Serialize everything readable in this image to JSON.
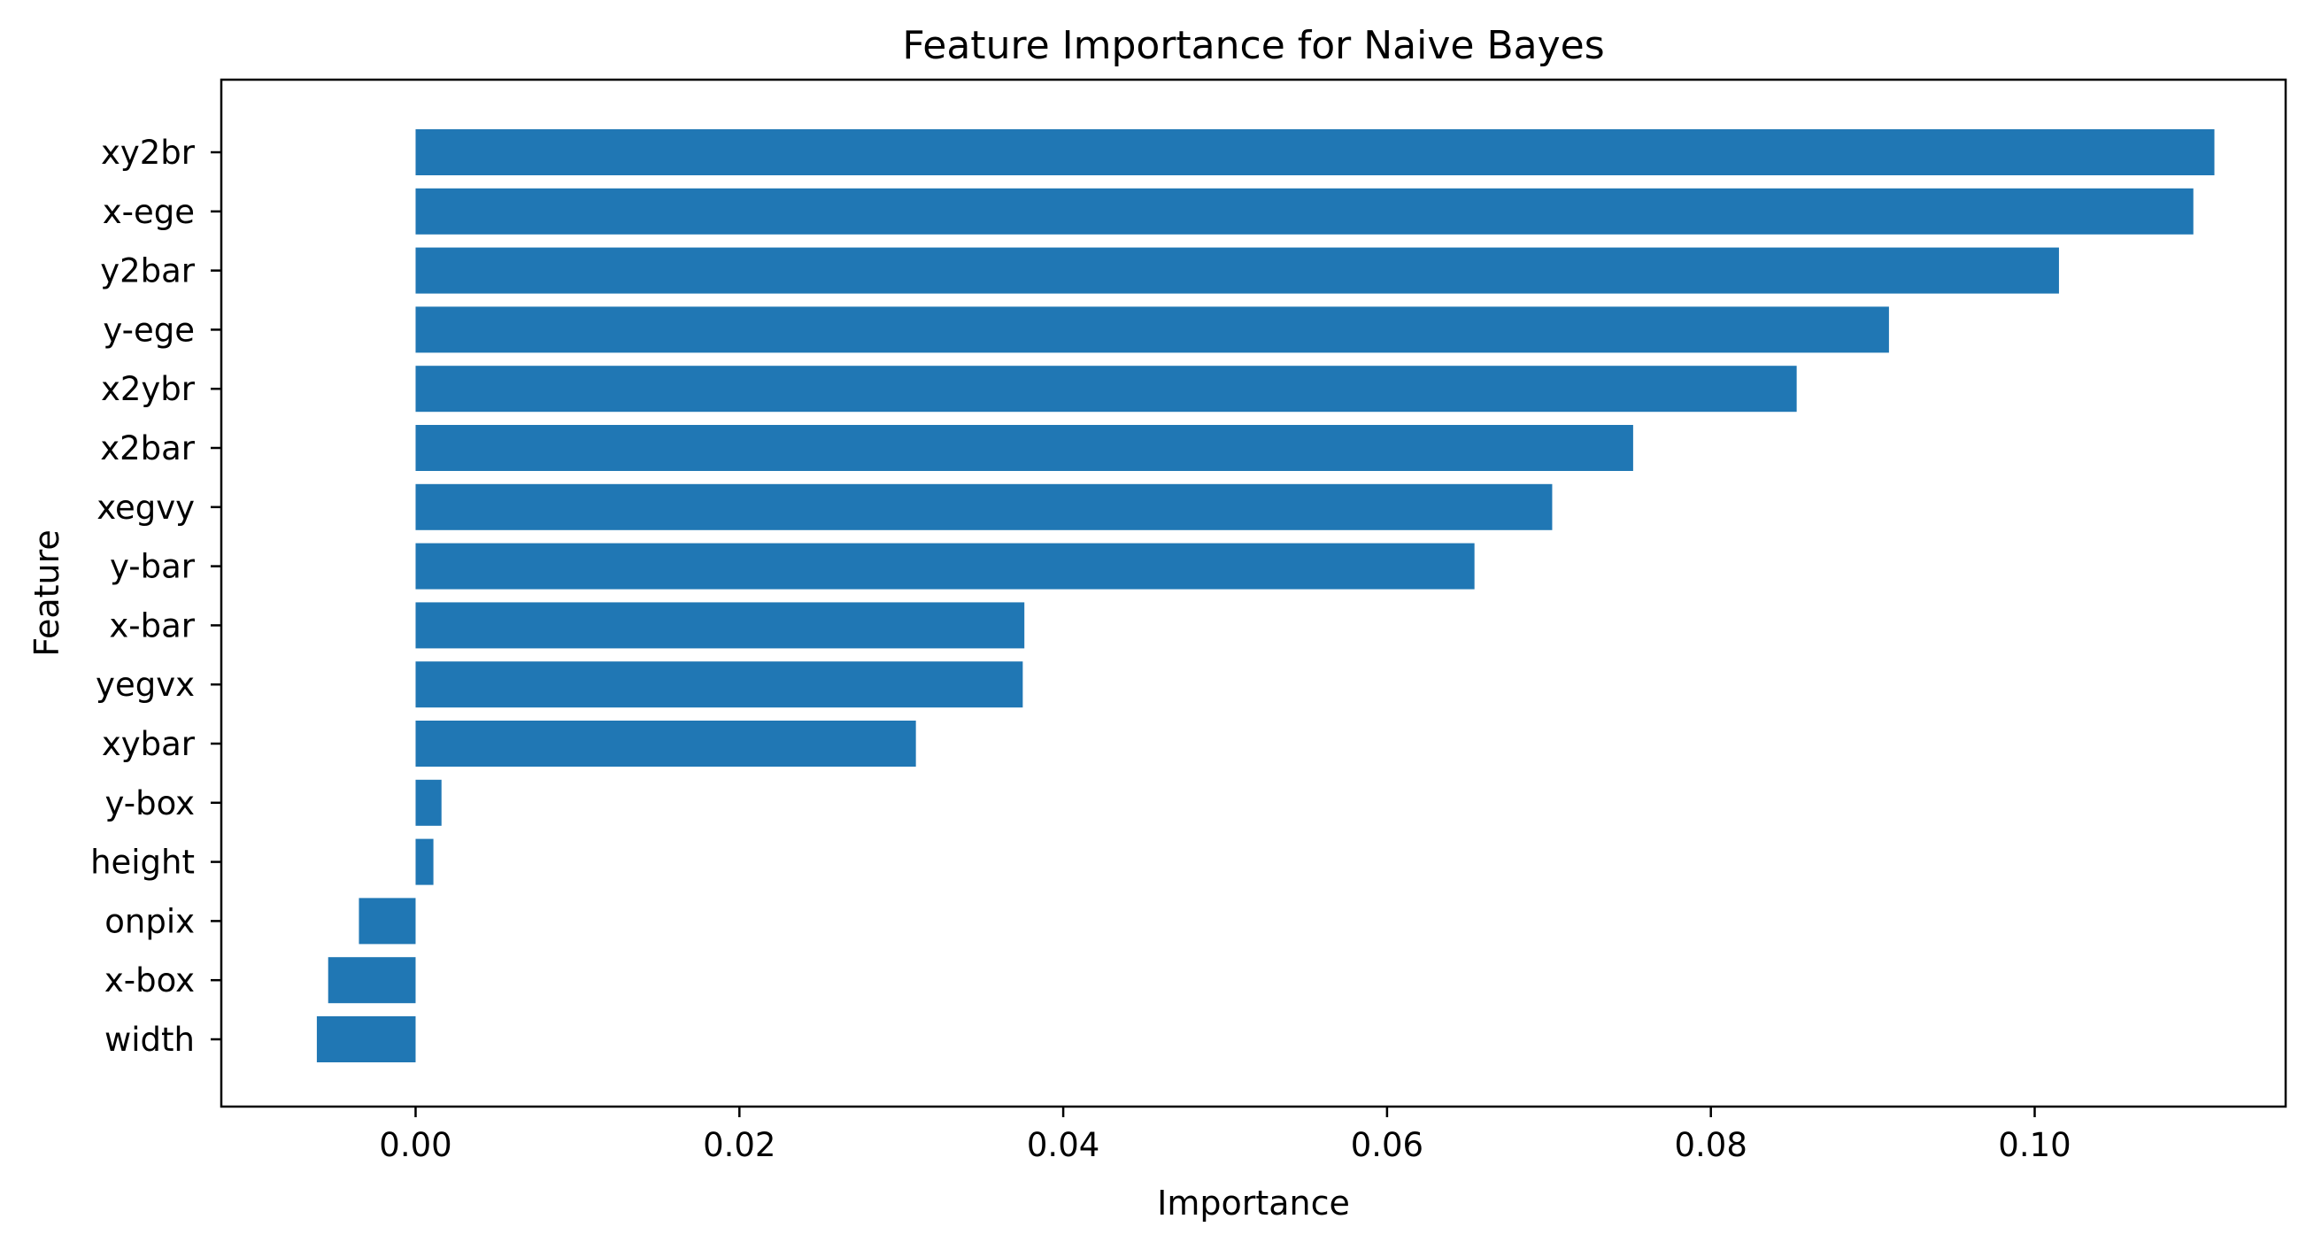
{
  "chart_data": {
    "type": "bar",
    "orientation": "horizontal",
    "title": "Feature Importance for Naive Bayes",
    "xlabel": "Importance",
    "ylabel": "Feature",
    "xlim": [
      -0.012,
      0.1155
    ],
    "xticks": [
      0.0,
      0.02,
      0.04,
      0.06,
      0.08,
      0.1
    ],
    "xtick_labels": [
      "0.00",
      "0.02",
      "0.04",
      "0.06",
      "0.08",
      "0.10"
    ],
    "categories": [
      "xy2br",
      "x-ege",
      "y2bar",
      "y-ege",
      "x2ybr",
      "x2bar",
      "xegvy",
      "y-bar",
      "x-bar",
      "yegvx",
      "xybar",
      "y-box",
      "height",
      "onpix",
      "x-box",
      "width"
    ],
    "values": [
      0.1111,
      0.1098,
      0.1015,
      0.091,
      0.0853,
      0.0752,
      0.0702,
      0.0654,
      0.0376,
      0.0375,
      0.0309,
      0.0016,
      0.0011,
      -0.0035,
      -0.0054,
      -0.0061
    ],
    "color": "#2077b4",
    "grid": false,
    "legend": false
  }
}
